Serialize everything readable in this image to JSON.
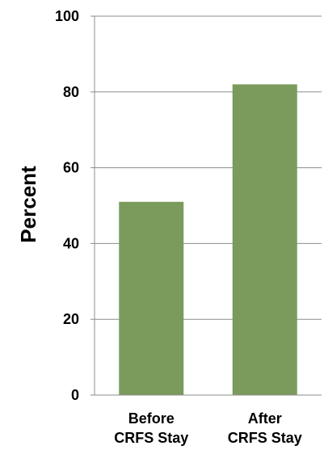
{
  "chart_data": {
    "type": "bar",
    "title": "",
    "xlabel": "",
    "ylabel": "Percent",
    "categories": [
      [
        "Before",
        "CRFS Stay"
      ],
      [
        "After",
        "CRFS Stay"
      ]
    ],
    "values": [
      51,
      82
    ],
    "ylim": [
      0,
      100
    ],
    "yticks": [
      0,
      20,
      40,
      60,
      80,
      100
    ],
    "grid": "horizontal",
    "legend": "none",
    "colors": {
      "bar": "#7a9b5c",
      "grid": "#8c8c8c",
      "axis": "#8c8c8c"
    }
  }
}
